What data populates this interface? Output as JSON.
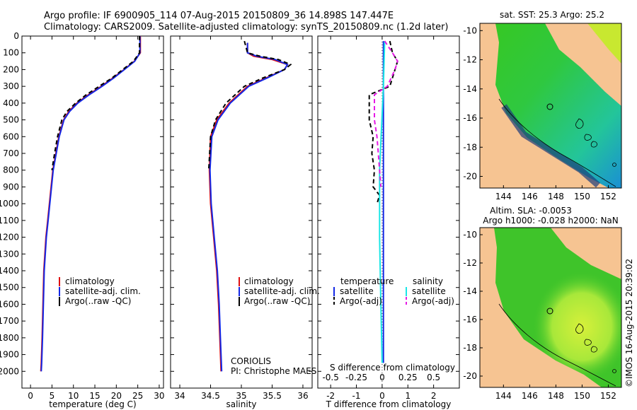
{
  "header": {
    "line1": "Argo profile: IF 6900905_114 07-Aug-2015 20150809_36 14.898S 147.447E",
    "line2": "Climatology: CARS2009. Satellite-adjusted climatology: synTS_20150809.nc (1.2d later)"
  },
  "side_text": "©IMOS 16-Aug-2015 20:39:02",
  "colors": {
    "climatology": "#e01010",
    "satellite": "#1428e6",
    "argo": "#000000",
    "sat_salinity": "#19e6e6",
    "argo_salinity": "#e619e6",
    "land": "#f6c492"
  },
  "chart_data": [
    {
      "type": "line",
      "name": "temperature-panel",
      "xlabel": "temperature (deg C)",
      "xlim": [
        -2,
        31
      ],
      "ylim": [
        2100,
        0
      ],
      "xticks": [
        "0",
        "5",
        "10",
        "15",
        "20",
        "25",
        "30"
      ],
      "yticks": [
        "0",
        "100",
        "200",
        "300",
        "400",
        "500",
        "600",
        "700",
        "800",
        "900",
        "1000",
        "1100",
        "1200",
        "1300",
        "1400",
        "1500",
        "1600",
        "1700",
        "1800",
        "1900",
        "2000"
      ],
      "legend": [
        "climatology",
        "satellite-adj. clim.",
        "Argo(..raw -QC)"
      ],
      "series": [
        {
          "name": "climatology",
          "style": "solid",
          "color": "#e01010",
          "x": [
            25.6,
            25.6,
            24.2,
            21.8,
            19.2,
            16.5,
            13.5,
            10.8,
            8.9,
            7.7,
            6.6,
            5.9,
            5.2,
            4.8,
            4.4,
            4.0,
            3.6,
            3.1,
            2.9,
            2.7,
            2.5,
            2.4
          ],
          "y": [
            0,
            100,
            150,
            200,
            250,
            300,
            350,
            400,
            450,
            500,
            600,
            700,
            800,
            900,
            1000,
            1100,
            1200,
            1400,
            1600,
            1800,
            1950,
            2000
          ]
        },
        {
          "name": "satellite-adj. clim.",
          "style": "solid",
          "color": "#1428e6",
          "x": [
            25.5,
            25.5,
            24.3,
            21.9,
            19.4,
            16.7,
            13.7,
            11.0,
            9.1,
            7.8,
            6.7,
            6.0,
            5.3,
            4.9,
            4.5,
            4.1,
            3.7,
            3.2,
            3.0,
            2.8,
            2.6,
            2.5
          ],
          "y": [
            0,
            100,
            150,
            200,
            250,
            300,
            350,
            400,
            450,
            500,
            600,
            700,
            800,
            900,
            1000,
            1100,
            1200,
            1400,
            1600,
            1800,
            1950,
            2000
          ]
        },
        {
          "name": "Argo(..raw -QC)",
          "style": "dash",
          "color": "#000000",
          "x": [
            25.4,
            25.4,
            24.0,
            21.5,
            19.0,
            16.0,
            13.0,
            10.5,
            8.5,
            7.3,
            6.3,
            5.6,
            5.0
          ],
          "y": [
            0,
            100,
            150,
            200,
            250,
            300,
            350,
            400,
            450,
            500,
            600,
            700,
            800
          ]
        }
      ],
      "annotation": []
    },
    {
      "type": "line",
      "name": "salinity-panel",
      "xlabel": "salinity",
      "xlim": [
        33.85,
        36.15
      ],
      "ylim": [
        2100,
        0
      ],
      "xticks": [
        "34",
        "34.5",
        "35",
        "35.5",
        "36"
      ],
      "legend": [
        "climatology",
        "satellite-adj. clim.",
        "Argo(..raw -QC)"
      ],
      "series": [
        {
          "name": "climatology",
          "style": "solid",
          "color": "#e01010",
          "x": [
            35.1,
            35.1,
            35.2,
            35.5,
            35.75,
            35.7,
            35.4,
            35.1,
            34.8,
            34.6,
            34.5,
            34.48,
            34.5,
            34.55,
            34.6,
            34.63,
            34.65,
            34.67
          ],
          "y": [
            40,
            100,
            120,
            140,
            170,
            200,
            250,
            300,
            400,
            500,
            600,
            800,
            1000,
            1200,
            1400,
            1600,
            1800,
            2000
          ]
        },
        {
          "name": "satellite-adj. clim.",
          "style": "solid",
          "color": "#1428e6",
          "x": [
            35.1,
            35.1,
            35.25,
            35.55,
            35.75,
            35.7,
            35.42,
            35.12,
            34.82,
            34.62,
            34.52,
            34.49,
            34.51,
            34.56,
            34.61,
            34.64,
            34.66,
            34.68
          ],
          "y": [
            40,
            100,
            120,
            140,
            170,
            200,
            250,
            300,
            400,
            500,
            600,
            800,
            1000,
            1200,
            1400,
            1600,
            1800,
            2000
          ]
        },
        {
          "name": "Argo(..raw -QC)",
          "style": "dash",
          "color": "#000000",
          "x": [
            35.05,
            35.1,
            35.3,
            35.6,
            35.8,
            35.7,
            35.35,
            35.05,
            34.75,
            34.58,
            34.5,
            34.47
          ],
          "y": [
            30,
            100,
            120,
            140,
            170,
            200,
            250,
            300,
            400,
            500,
            600,
            800
          ]
        }
      ],
      "annotation": [
        "CORIOLIS",
        "PI: Christophe MAES"
      ]
    },
    {
      "type": "line",
      "name": "difference-panel",
      "xlabel": "T difference from climatology",
      "xlabel_top": "S difference from climatology",
      "xlim": [
        -2.5,
        3.0
      ],
      "ylim": [
        2100,
        0
      ],
      "xticks": [
        "-2",
        "-1",
        "0",
        "1",
        "2"
      ],
      "xticks_top": [
        "-0.5",
        "-0.25",
        "0",
        "0.25",
        "0.5"
      ],
      "legend_titles": [
        "temperature",
        "salinity"
      ],
      "legend": [
        "satellite",
        "Argo(-adj)",
        "satellite",
        "Argo(-adj)"
      ],
      "series": [
        {
          "name": "temperature satellite",
          "style": "solid",
          "color": "#1428e6",
          "x": [
            0.05,
            0.05,
            0.05,
            0.05,
            0.05,
            0.05
          ],
          "y": [
            30,
            300,
            800,
            1200,
            1600,
            1950
          ]
        },
        {
          "name": "temperature Argo(-adj)",
          "style": "dash",
          "color": "#000000",
          "x": [
            0.3,
            0.4,
            0.6,
            0.5,
            0.3,
            -0.5,
            -0.5,
            -0.35,
            -0.4,
            -0.3,
            -0.35,
            -0.1,
            -0.2
          ],
          "y": [
            30,
            100,
            150,
            200,
            300,
            350,
            500,
            600,
            700,
            800,
            900,
            950,
            1000
          ]
        },
        {
          "name": "salinity satellite",
          "style": "solid",
          "color": "#19e6e6",
          "x": [
            0.1,
            0.05,
            -0.1,
            -0.1,
            -0.05,
            0.0
          ],
          "y": [
            30,
            300,
            800,
            1200,
            1600,
            1950
          ]
        },
        {
          "name": "salinity Argo(-adj)",
          "style": "dash",
          "color": "#e619e6",
          "x": [
            0.1,
            0.4,
            0.6,
            0.5,
            0.2,
            -0.3,
            -0.3,
            -0.2,
            -0.15,
            -0.1,
            -0.05
          ],
          "y": [
            30,
            100,
            150,
            200,
            300,
            350,
            500,
            600,
            700,
            800,
            900
          ]
        }
      ]
    }
  ],
  "maps": [
    {
      "title": "sat. SST: 25.3 Argo: 25.2",
      "title2": "",
      "xticks": [
        "144",
        "146",
        "148",
        "150",
        "152"
      ],
      "yticks": [
        "-10",
        "-12",
        "-14",
        "-16",
        "-18",
        "-20"
      ]
    },
    {
      "title": "Altim. SLA: -0.0053",
      "title2": "Argo h1000: -0.028 h2000: NaN",
      "xticks": [
        "144",
        "146",
        "148",
        "150",
        "152"
      ],
      "yticks": [
        "-10",
        "-12",
        "-14",
        "-16",
        "-18",
        "-20"
      ]
    }
  ]
}
